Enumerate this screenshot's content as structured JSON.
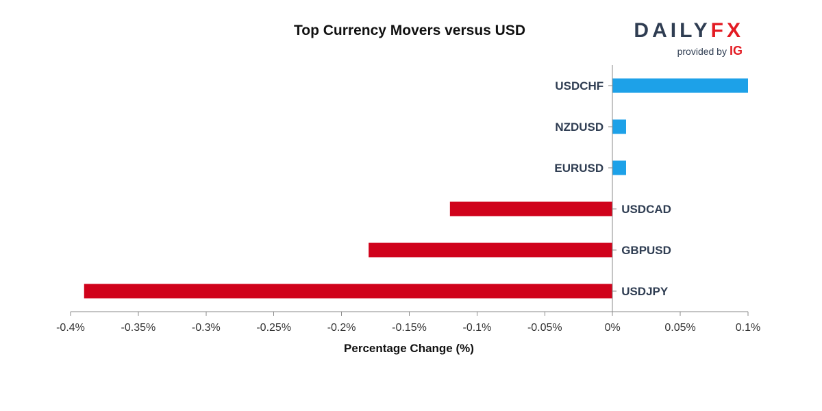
{
  "chart_data": {
    "type": "bar",
    "orientation": "horizontal",
    "title": "Top Currency Movers versus USD",
    "xlabel": "Percentage Change (%)",
    "ylabel": "",
    "categories": [
      "USDCHF",
      "NZDUSD",
      "EURUSD",
      "USDCAD",
      "GBPUSD",
      "USDJPY"
    ],
    "values": [
      0.1,
      0.01,
      0.01,
      -0.12,
      -0.18,
      -0.39
    ],
    "xlim": [
      -0.4,
      0.1
    ],
    "x_ticks": [
      -0.4,
      -0.35,
      -0.3,
      -0.25,
      -0.2,
      -0.15,
      -0.1,
      -0.05,
      0,
      0.05,
      0.1
    ],
    "x_tick_labels": [
      "-0.4%",
      "-0.35%",
      "-0.3%",
      "-0.25%",
      "-0.2%",
      "-0.15%",
      "-0.1%",
      "-0.05%",
      "0%",
      "0.05%",
      "0.1%"
    ],
    "grid": false,
    "colors": {
      "positive": "#1da1e8",
      "negative": "#d0021b"
    }
  },
  "brand": {
    "name_part1": "DAILY",
    "name_part2": "FX",
    "provided_by": "provided by",
    "ig": "IG"
  }
}
